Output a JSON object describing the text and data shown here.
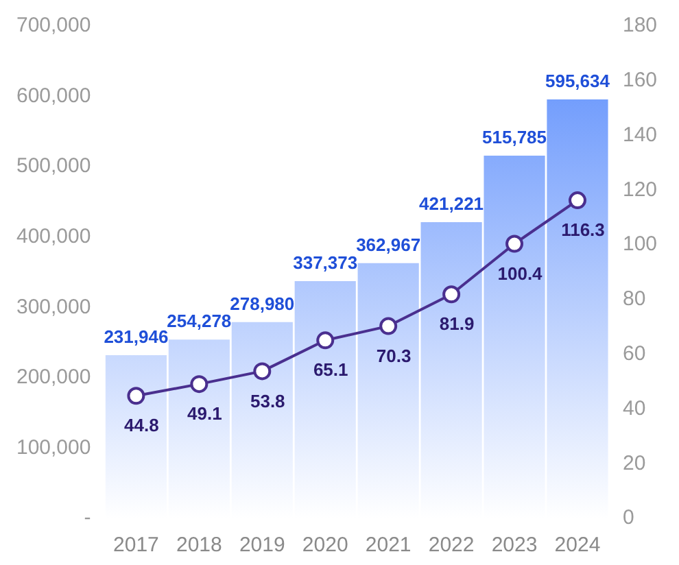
{
  "chart_data": {
    "type": "bar",
    "categories": [
      "2017",
      "2018",
      "2019",
      "2020",
      "2021",
      "2022",
      "2023",
      "2024"
    ],
    "series": [
      {
        "color": "#5b8dfc",
        "values": [
          231946,
          254278,
          278980,
          337373,
          362967,
          421221,
          515785,
          595634
        ],
        "value_labels": [
          "231,946",
          "254,278",
          "278,980",
          "337,373",
          "362,967",
          "421,221",
          "515,785",
          "595,634"
        ]
      },
      {
        "type": "line",
        "axis": "y2",
        "color": "#4a2f8f",
        "values": [
          44.8,
          49.1,
          53.8,
          65.1,
          70.3,
          81.9,
          100.4,
          116.3
        ],
        "value_labels": [
          "44.8",
          "49.1",
          "53.8",
          "65.1",
          "70.3",
          "81.9",
          "100.4",
          "116.3"
        ]
      }
    ],
    "ylim": [
      0,
      700000
    ],
    "yticks": [
      {
        "value": 0,
        "label": "-"
      },
      {
        "value": 100000,
        "label": "100,000"
      },
      {
        "value": 200000,
        "label": "200,000"
      },
      {
        "value": 300000,
        "label": "300,000"
      },
      {
        "value": 400000,
        "label": "400,000"
      },
      {
        "value": 500000,
        "label": "500,000"
      },
      {
        "value": 600000,
        "label": "600,000"
      },
      {
        "value": 700000,
        "label": "700,000"
      }
    ],
    "y2lim": [
      0,
      180
    ],
    "y2ticks": [
      0,
      20,
      40,
      60,
      80,
      100,
      120,
      140,
      160,
      180
    ],
    "grid": false,
    "legend": false,
    "marker": "circle"
  }
}
